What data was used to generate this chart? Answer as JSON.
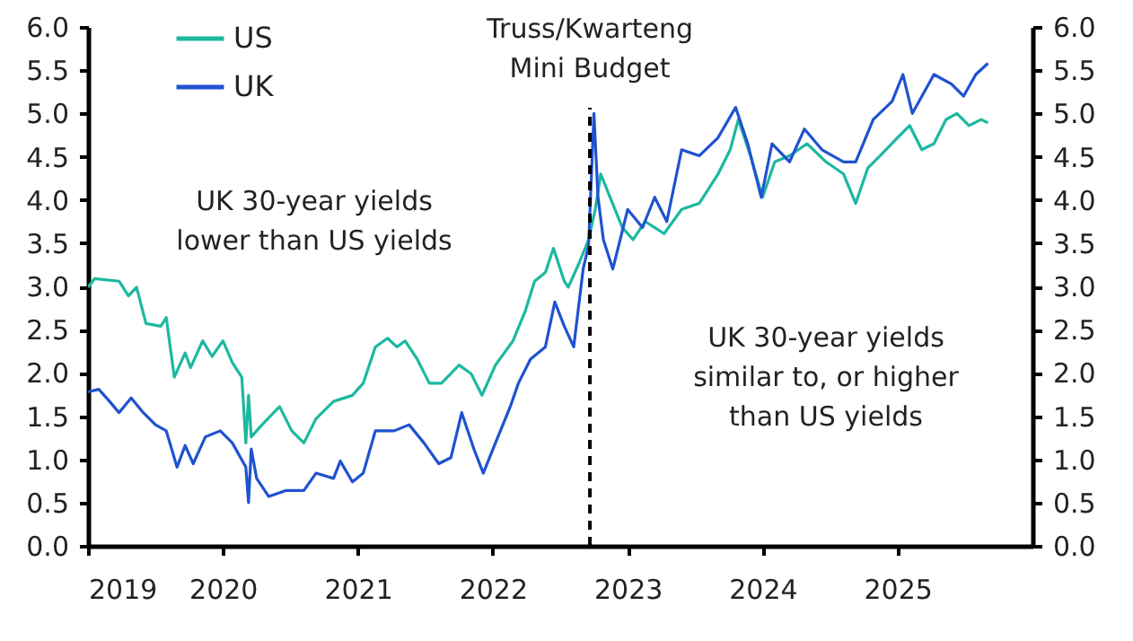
{
  "chart_data": {
    "type": "line",
    "legend": "top left",
    "xlim": [
      2019,
      2026
    ],
    "xticks": [
      2019,
      2020,
      2021,
      2022,
      2023,
      2024,
      2025
    ],
    "ylim": [
      0,
      6
    ],
    "yticks": [
      {
        "value": 0,
        "label": "0.0"
      },
      {
        "value": 0.5,
        "label": "0.5"
      },
      {
        "value": 1,
        "label": "1.0"
      },
      {
        "value": 1.5,
        "label": "1.5"
      },
      {
        "value": 2,
        "label": "2.0"
      },
      {
        "value": 2.5,
        "label": "2.5"
      },
      {
        "value": 3,
        "label": "3.0"
      },
      {
        "value": 3.5,
        "label": "3.5"
      },
      {
        "value": 4,
        "label": "4.0"
      },
      {
        "value": 4.5,
        "label": "4.5"
      },
      {
        "value": 5,
        "label": "5.0"
      },
      {
        "value": 5.5,
        "label": "5.5"
      },
      {
        "value": 6,
        "label": "6.0"
      }
    ],
    "y2lim": [
      0,
      6
    ],
    "y2ticks": [
      {
        "value": 0,
        "label": "0.0"
      },
      {
        "value": 0.5,
        "label": "0.5"
      },
      {
        "value": 1,
        "label": "1.0"
      },
      {
        "value": 1.5,
        "label": "1.5"
      },
      {
        "value": 2,
        "label": "2.0"
      },
      {
        "value": 2.5,
        "label": "2.5"
      },
      {
        "value": 3,
        "label": "3.0"
      },
      {
        "value": 3.5,
        "label": "3.5"
      },
      {
        "value": 4,
        "label": "4.0"
      },
      {
        "value": 4.5,
        "label": "4.5"
      },
      {
        "value": 5,
        "label": "5.0"
      },
      {
        "value": 5.5,
        "label": "5.5"
      },
      {
        "value": 6,
        "label": "6.0"
      }
    ],
    "ref_lines": [
      {
        "axis": "x",
        "value": 2022.72,
        "label": "Truss/Kwarteng\nMini Budget",
        "line_style": "dashed",
        "color": "#000000"
      }
    ],
    "annotations": [
      "UK 30-year yields\nlower than US yields",
      "UK 30-year yields\nsimilar to, or higher\nthan US yields"
    ],
    "series": [
      {
        "name": "US",
        "color": "#1db8a0",
        "x": [
          2019.0,
          2019.05,
          2019.23,
          2019.3,
          2019.36,
          2019.43,
          2019.54,
          2019.58,
          2019.64,
          2019.72,
          2019.76,
          2019.85,
          2019.92,
          2020.0,
          2020.07,
          2020.14,
          2020.17,
          2020.19,
          2020.21,
          2020.29,
          2020.42,
          2020.51,
          2020.6,
          2020.69,
          2020.82,
          2020.96,
          2021.04,
          2021.13,
          2021.22,
          2021.29,
          2021.35,
          2021.44,
          2021.53,
          2021.62,
          2021.75,
          2021.84,
          2021.92,
          2022.02,
          2022.15,
          2022.24,
          2022.31,
          2022.39,
          2022.45,
          2022.53,
          2022.56,
          2022.64,
          2022.71,
          2022.76,
          2022.8,
          2022.87,
          2022.96,
          2023.04,
          2023.13,
          2023.27,
          2023.4,
          2023.53,
          2023.67,
          2023.76,
          2023.82,
          2023.91,
          2024.0,
          2024.09,
          2024.2,
          2024.33,
          2024.47,
          2024.6,
          2024.69,
          2024.78,
          2024.87,
          2025.0,
          2025.09,
          2025.18,
          2025.27,
          2025.36,
          2025.44,
          2025.53,
          2025.62,
          2025.67
        ],
        "values": [
          2.99,
          3.09,
          3.06,
          2.89,
          2.99,
          2.57,
          2.54,
          2.64,
          1.95,
          2.23,
          2.06,
          2.37,
          2.19,
          2.37,
          2.12,
          1.95,
          1.19,
          1.74,
          1.26,
          1.4,
          1.61,
          1.33,
          1.19,
          1.47,
          1.67,
          1.74,
          1.88,
          2.3,
          2.4,
          2.3,
          2.37,
          2.16,
          1.88,
          1.88,
          2.09,
          1.99,
          1.74,
          2.09,
          2.37,
          2.71,
          3.06,
          3.16,
          3.44,
          3.06,
          2.99,
          3.27,
          3.54,
          3.89,
          4.3,
          4.03,
          3.68,
          3.54,
          3.75,
          3.61,
          3.89,
          3.96,
          4.3,
          4.58,
          4.93,
          4.51,
          4.03,
          4.44,
          4.51,
          4.65,
          4.44,
          4.3,
          3.96,
          4.37,
          4.51,
          4.72,
          4.86,
          4.58,
          4.65,
          4.93,
          5.0,
          4.86,
          4.93,
          4.89
        ]
      },
      {
        "name": "UK",
        "color": "#2052d0",
        "x": [
          2019.0,
          2019.08,
          2019.16,
          2019.23,
          2019.32,
          2019.41,
          2019.5,
          2019.58,
          2019.66,
          2019.72,
          2019.78,
          2019.87,
          2019.98,
          2020.07,
          2020.17,
          2020.19,
          2020.21,
          2020.25,
          2020.34,
          2020.47,
          2020.6,
          2020.69,
          2020.82,
          2020.87,
          2020.96,
          2021.04,
          2021.13,
          2021.27,
          2021.38,
          2021.49,
          2021.6,
          2021.69,
          2021.77,
          2021.86,
          2021.93,
          2022.02,
          2022.13,
          2022.19,
          2022.28,
          2022.39,
          2022.46,
          2022.53,
          2022.6,
          2022.67,
          2022.71,
          2022.75,
          2022.78,
          2022.82,
          2022.89,
          2023.0,
          2023.11,
          2023.2,
          2023.29,
          2023.4,
          2023.53,
          2023.67,
          2023.8,
          2023.89,
          2023.99,
          2024.07,
          2024.2,
          2024.31,
          2024.44,
          2024.6,
          2024.69,
          2024.82,
          2024.96,
          2025.04,
          2025.11,
          2025.27,
          2025.4,
          2025.49,
          2025.58,
          2025.67
        ],
        "values": [
          1.78,
          1.81,
          1.67,
          1.54,
          1.71,
          1.54,
          1.4,
          1.33,
          0.91,
          1.16,
          0.95,
          1.26,
          1.33,
          1.19,
          0.91,
          0.5,
          1.12,
          0.78,
          0.57,
          0.64,
          0.64,
          0.84,
          0.78,
          0.98,
          0.74,
          0.84,
          1.33,
          1.33,
          1.4,
          1.19,
          0.95,
          1.02,
          1.54,
          1.12,
          0.84,
          1.19,
          1.61,
          1.88,
          2.16,
          2.3,
          2.82,
          2.54,
          2.3,
          3.2,
          3.47,
          5.0,
          4.03,
          3.54,
          3.2,
          3.89,
          3.68,
          4.03,
          3.75,
          4.58,
          4.51,
          4.72,
          5.07,
          4.65,
          4.03,
          4.65,
          4.44,
          4.82,
          4.58,
          4.44,
          4.44,
          4.93,
          5.14,
          5.45,
          5.0,
          5.45,
          5.34,
          5.2,
          5.45,
          5.58
        ]
      }
    ]
  }
}
